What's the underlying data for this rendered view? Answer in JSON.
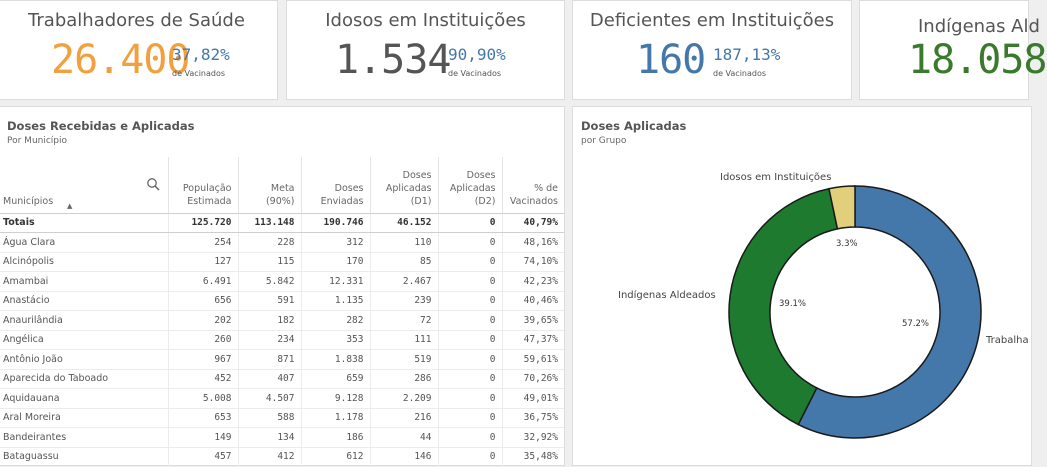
{
  "kpis": [
    {
      "title": "Trabalhadores de Saúde",
      "value": "26.400",
      "pct": "37,82%",
      "sub": "de Vacinados",
      "value_color": "#f2a03d",
      "pct_color": "#4477aa"
    },
    {
      "title": "Idosos em Instituições",
      "value": "1.534",
      "pct": "90,90%",
      "sub": "de Vacinados",
      "value_color": "#555555",
      "pct_color": "#4477aa"
    },
    {
      "title": "Deficientes em Instituições",
      "value": "160",
      "pct": "187,13%",
      "sub": "de Vacinados",
      "value_color": "#4477aa",
      "pct_color": "#4477aa"
    },
    {
      "title": "Indígenas Ald",
      "value": "18.058",
      "pct": "",
      "sub": "",
      "value_color": "#3a7a2c",
      "pct_color": "#4477aa"
    }
  ],
  "table_panel": {
    "title": "Doses Recebidas e Aplicadas",
    "subtitle": "Por Município",
    "headers": {
      "municipio": "Municípios",
      "populacao_1": "População",
      "populacao_2": "Estimada",
      "meta_1": "Meta",
      "meta_2": "(90%)",
      "enviadas_1": "Doses",
      "enviadas_2": "Enviadas",
      "d1_1": "Doses",
      "d1_2": "Aplicadas",
      "d1_3": "(D1)",
      "d2_1": "Doses",
      "d2_2": "Aplicadas",
      "d2_3": "(D2)",
      "pct_1": "% de",
      "pct_2": "Vacinados"
    },
    "totals": {
      "label": "Totais",
      "populacao": "125.720",
      "meta": "113.148",
      "enviadas": "190.746",
      "d1": "46.152",
      "d2": "0",
      "pct": "40,79%"
    },
    "rows": [
      {
        "municipio": "Água Clara",
        "populacao": "254",
        "meta": "228",
        "enviadas": "312",
        "d1": "110",
        "d2": "0",
        "pct": "48,16%"
      },
      {
        "municipio": "Alcinópolis",
        "populacao": "127",
        "meta": "115",
        "enviadas": "170",
        "d1": "85",
        "d2": "0",
        "pct": "74,10%"
      },
      {
        "municipio": "Amambai",
        "populacao": "6.491",
        "meta": "5.842",
        "enviadas": "12.331",
        "d1": "2.467",
        "d2": "0",
        "pct": "42,23%"
      },
      {
        "municipio": "Anastácio",
        "populacao": "656",
        "meta": "591",
        "enviadas": "1.135",
        "d1": "239",
        "d2": "0",
        "pct": "40,46%"
      },
      {
        "municipio": "Anaurilândia",
        "populacao": "202",
        "meta": "182",
        "enviadas": "282",
        "d1": "72",
        "d2": "0",
        "pct": "39,65%"
      },
      {
        "municipio": "Angélica",
        "populacao": "260",
        "meta": "234",
        "enviadas": "353",
        "d1": "111",
        "d2": "0",
        "pct": "47,37%"
      },
      {
        "municipio": "Antônio João",
        "populacao": "967",
        "meta": "871",
        "enviadas": "1.838",
        "d1": "519",
        "d2": "0",
        "pct": "59,61%"
      },
      {
        "municipio": "Aparecida do Taboado",
        "populacao": "452",
        "meta": "407",
        "enviadas": "659",
        "d1": "286",
        "d2": "0",
        "pct": "70,26%"
      },
      {
        "municipio": "Aquidauana",
        "populacao": "5.008",
        "meta": "4.507",
        "enviadas": "9.128",
        "d1": "2.209",
        "d2": "0",
        "pct": "49,01%"
      },
      {
        "municipio": "Aral Moreira",
        "populacao": "653",
        "meta": "588",
        "enviadas": "1.178",
        "d1": "216",
        "d2": "0",
        "pct": "36,75%"
      },
      {
        "municipio": "Bandeirantes",
        "populacao": "149",
        "meta": "134",
        "enviadas": "186",
        "d1": "44",
        "d2": "0",
        "pct": "32,92%"
      },
      {
        "municipio": "Bataguassu",
        "populacao": "457",
        "meta": "412",
        "enviadas": "612",
        "d1": "146",
        "d2": "0",
        "pct": "35,48%"
      }
    ]
  },
  "chart_panel": {
    "title": "Doses Aplicadas",
    "subtitle": "por Grupo"
  },
  "chart_data": {
    "type": "pie",
    "donut": true,
    "categories": [
      "Trabalhadores de Saúde",
      "Indígenas Aldeados",
      "Idosos em Instituições"
    ],
    "category_labels": [
      "Trabalha",
      "Indígenas Aldeados",
      "Idosos em Instituições"
    ],
    "values": [
      57.2,
      39.1,
      3.3
    ],
    "value_labels": [
      "57.2%",
      "39.1%",
      "3.3%"
    ],
    "colors": [
      "#4477aa",
      "#1e7a2e",
      "#e2cf7c"
    ]
  }
}
